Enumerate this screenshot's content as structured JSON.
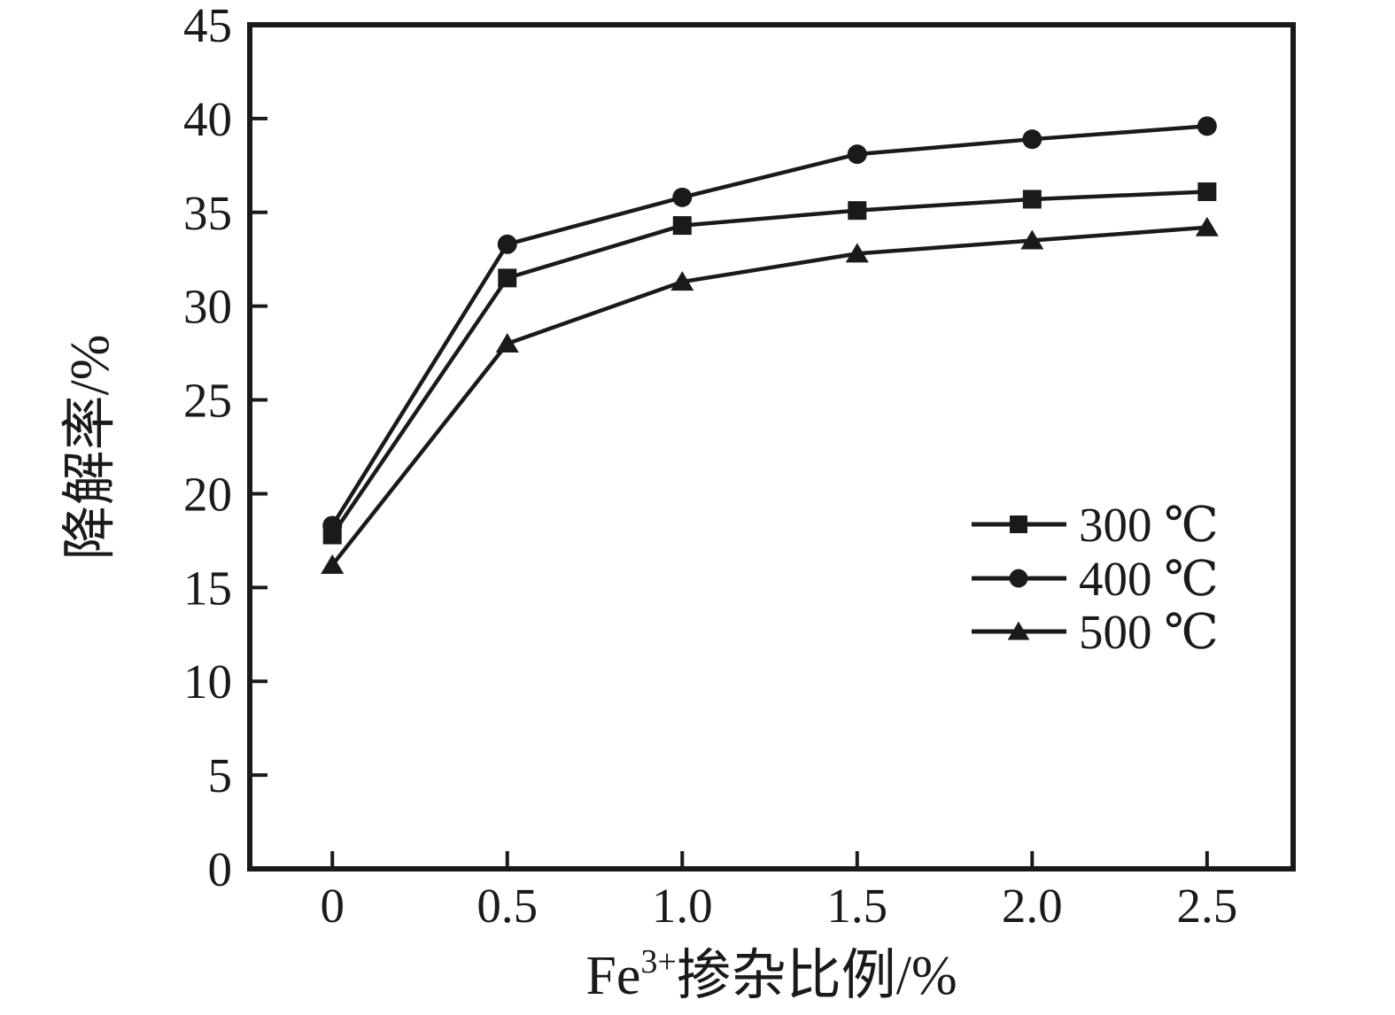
{
  "chart_data": {
    "type": "line",
    "title": "",
    "xlabel": "Fe3+掺杂比例/%",
    "xlabel_parts": {
      "base": "Fe",
      "sup": "3+",
      "rest": "掺杂比例/%"
    },
    "ylabel": "降解率/%",
    "x": [
      0,
      0.5,
      1.0,
      1.5,
      2.0,
      2.5
    ],
    "xtick_labels": [
      "0",
      "0.5",
      "1.0",
      "1.5",
      "2.0",
      "2.5"
    ],
    "ytick_values": [
      0,
      5,
      10,
      15,
      20,
      25,
      30,
      35,
      40,
      45
    ],
    "ytick_labels": [
      "0",
      "5",
      "10",
      "15",
      "20",
      "25",
      "30",
      "35",
      "40",
      "45"
    ],
    "xlim": [
      -0.236,
      2.746
    ],
    "ylim": [
      0,
      45
    ],
    "grid": false,
    "legend_position": "inside-right-middle",
    "line_color": "#1a1a1a",
    "background_color": "#ffffff",
    "series": [
      {
        "name": "300 ℃",
        "marker": "square",
        "values": [
          17.8,
          31.5,
          34.3,
          35.1,
          35.7,
          36.1
        ]
      },
      {
        "name": "400 ℃",
        "marker": "circle",
        "values": [
          18.3,
          33.3,
          35.8,
          38.1,
          38.9,
          39.6
        ]
      },
      {
        "name": "500 ℃",
        "marker": "triangle",
        "values": [
          16.2,
          28.0,
          31.3,
          32.8,
          33.5,
          34.2
        ]
      }
    ]
  }
}
